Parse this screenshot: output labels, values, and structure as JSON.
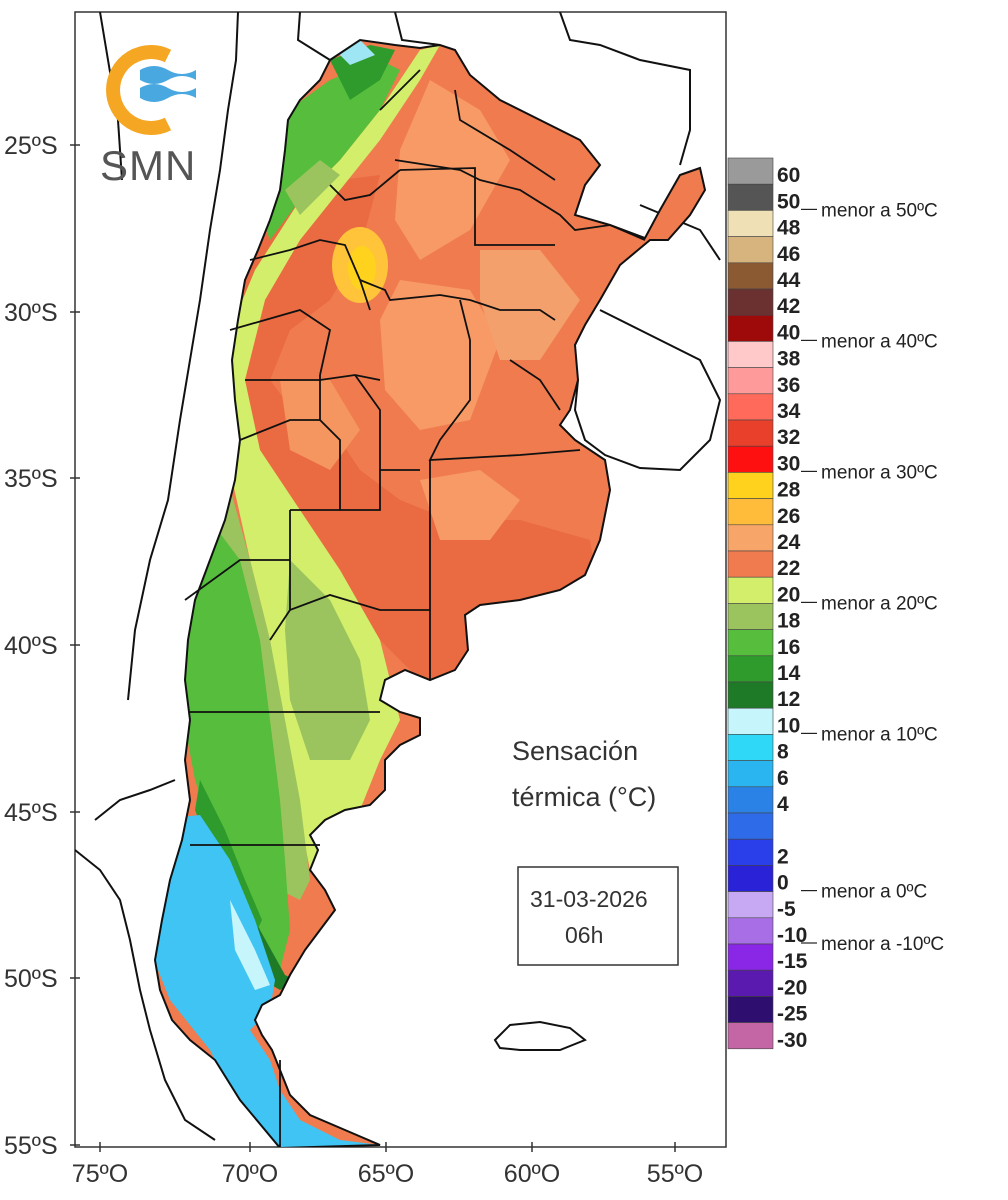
{
  "logo": {
    "text": "SMN",
    "colors": {
      "orange": "#f5a623",
      "blue": "#4aa8e0"
    }
  },
  "title": {
    "line1": "Sensación",
    "line2": "térmica (°C)"
  },
  "date_box": {
    "date": "31-03-2026",
    "hour": "06h"
  },
  "latitudes": [
    "25ºS",
    "30ºS",
    "35ºS",
    "40ºS",
    "45ºS",
    "50ºS",
    "55ºS"
  ],
  "longitudes": [
    "75ºO",
    "70ºO",
    "65ºO",
    "60ºO",
    "55ºO"
  ],
  "legend": {
    "bins": [
      {
        "label": "60",
        "color": "#9a9a9a"
      },
      {
        "label": "50",
        "color": "#555555"
      },
      {
        "label": "48",
        "color": "#efe0b5"
      },
      {
        "label": "46",
        "color": "#d7b47e"
      },
      {
        "label": "44",
        "color": "#8b5a32"
      },
      {
        "label": "42",
        "color": "#6b3030"
      },
      {
        "label": "40",
        "color": "#9e0a0a"
      },
      {
        "label": "38",
        "color": "#ffc9c9"
      },
      {
        "label": "36",
        "color": "#ff9a9a"
      },
      {
        "label": "34",
        "color": "#ff6a5a"
      },
      {
        "label": "32",
        "color": "#e8402a"
      },
      {
        "label": "30",
        "color": "#ff1010"
      },
      {
        "label": "28",
        "color": "#ffd21e"
      },
      {
        "label": "26",
        "color": "#ffbb3a"
      },
      {
        "label": "24",
        "color": "#f8a56a"
      },
      {
        "label": "22",
        "color": "#ef7b4e"
      },
      {
        "label": "20",
        "color": "#d2ee6a"
      },
      {
        "label": "18",
        "color": "#9cc45e"
      },
      {
        "label": "16",
        "color": "#56bd3d"
      },
      {
        "label": "14",
        "color": "#2f9b2c"
      },
      {
        "label": "12",
        "color": "#1f7a28"
      },
      {
        "label": "10",
        "color": "#c6f6fc"
      },
      {
        "label": "8",
        "color": "#2fd8f6"
      },
      {
        "label": "6",
        "color": "#2ab4f0"
      },
      {
        "label": "4",
        "color": "#2b82e6"
      },
      {
        "label": "",
        "color": "#2d6be8"
      },
      {
        "label": "2",
        "color": "#2a3eea"
      },
      {
        "label": "0",
        "color": "#2a22d6"
      },
      {
        "label": "-5",
        "color": "#c7a8f2"
      },
      {
        "label": "-10",
        "color": "#a86ee6"
      },
      {
        "label": "-15",
        "color": "#8a26e6"
      },
      {
        "label": "-20",
        "color": "#5a1ab0"
      },
      {
        "label": "-25",
        "color": "#2e0e6e"
      },
      {
        "label": "-30",
        "color": "#c466a6"
      }
    ],
    "notes": [
      {
        "text": "menor a 50ºC",
        "bin": 1
      },
      {
        "text": "menor a 40ºC",
        "bin": 6
      },
      {
        "text": "menor a 30ºC",
        "bin": 11
      },
      {
        "text": "menor a 20ºC",
        "bin": 16
      },
      {
        "text": "menor a 10ºC",
        "bin": 21
      },
      {
        "text": "menor a 0ºC",
        "bin": 27
      },
      {
        "text": "menor a -10ºC",
        "bin": 29
      }
    ]
  }
}
